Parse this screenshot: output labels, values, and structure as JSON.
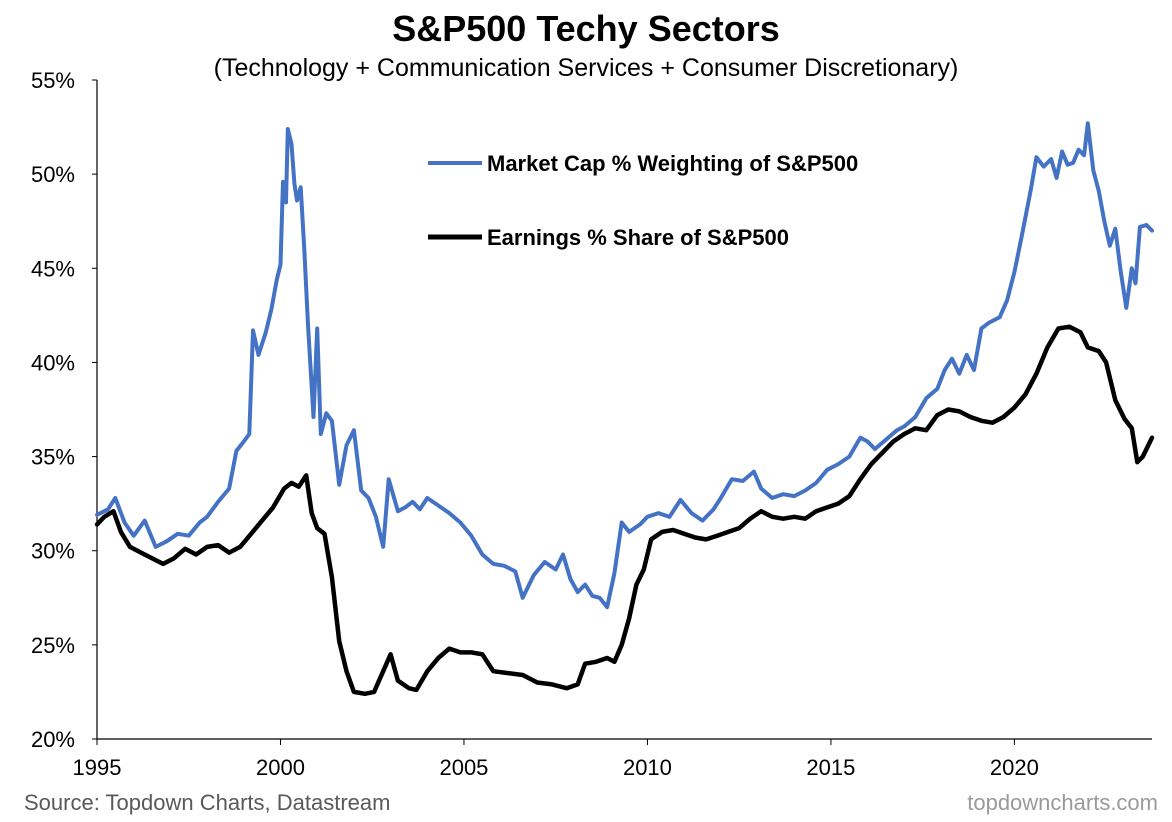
{
  "chart_data": {
    "type": "line",
    "title": "S&P500 Techy Sectors",
    "subtitle": "(Technology + Communication Services + Consumer Discretionary)",
    "xlabel": "",
    "ylabel": "",
    "xlim": [
      1995,
      2023.75
    ],
    "ylim": [
      20,
      55
    ],
    "x_ticks": [
      1995,
      2000,
      2005,
      2010,
      2015,
      2020
    ],
    "x_tick_labels": [
      "1995",
      "2000",
      "2005",
      "2010",
      "2015",
      "2020"
    ],
    "y_ticks": [
      20,
      25,
      30,
      35,
      40,
      45,
      50,
      55
    ],
    "y_tick_labels": [
      "20%",
      "25%",
      "30%",
      "35%",
      "40%",
      "45%",
      "50%",
      "55%"
    ],
    "grid": false,
    "legend_position": "top-center",
    "series": [
      {
        "name": "Market Cap % Weighting of S&P500",
        "color": "#4472C4",
        "points": [
          [
            1995.0,
            31.9
          ],
          [
            1995.3,
            32.2
          ],
          [
            1995.5,
            32.8
          ],
          [
            1995.75,
            31.5
          ],
          [
            1996.0,
            30.8
          ],
          [
            1996.3,
            31.6
          ],
          [
            1996.6,
            30.2
          ],
          [
            1996.9,
            30.5
          ],
          [
            1997.2,
            30.9
          ],
          [
            1997.5,
            30.8
          ],
          [
            1997.8,
            31.5
          ],
          [
            1998.0,
            31.8
          ],
          [
            1998.3,
            32.6
          ],
          [
            1998.6,
            33.3
          ],
          [
            1998.8,
            35.3
          ],
          [
            1999.0,
            35.8
          ],
          [
            1999.15,
            36.2
          ],
          [
            1999.25,
            41.7
          ],
          [
            1999.4,
            40.4
          ],
          [
            1999.6,
            41.6
          ],
          [
            1999.75,
            42.8
          ],
          [
            1999.9,
            44.4
          ],
          [
            2000.0,
            45.2
          ],
          [
            2000.07,
            49.6
          ],
          [
            2000.15,
            48.5
          ],
          [
            2000.2,
            52.4
          ],
          [
            2000.3,
            51.6
          ],
          [
            2000.38,
            49.5
          ],
          [
            2000.45,
            48.6
          ],
          [
            2000.55,
            49.3
          ],
          [
            2000.65,
            46.0
          ],
          [
            2000.75,
            42.0
          ],
          [
            2000.9,
            37.1
          ],
          [
            2001.0,
            41.8
          ],
          [
            2001.1,
            36.2
          ],
          [
            2001.25,
            37.3
          ],
          [
            2001.4,
            36.9
          ],
          [
            2001.6,
            33.5
          ],
          [
            2001.8,
            35.6
          ],
          [
            2002.0,
            36.4
          ],
          [
            2002.2,
            33.2
          ],
          [
            2002.4,
            32.8
          ],
          [
            2002.6,
            31.8
          ],
          [
            2002.8,
            30.2
          ],
          [
            2002.95,
            33.8
          ],
          [
            2003.2,
            32.1
          ],
          [
            2003.4,
            32.3
          ],
          [
            2003.6,
            32.6
          ],
          [
            2003.8,
            32.2
          ],
          [
            2004.0,
            32.8
          ],
          [
            2004.3,
            32.4
          ],
          [
            2004.6,
            32.0
          ],
          [
            2004.9,
            31.5
          ],
          [
            2005.2,
            30.8
          ],
          [
            2005.5,
            29.8
          ],
          [
            2005.8,
            29.3
          ],
          [
            2006.1,
            29.2
          ],
          [
            2006.4,
            28.9
          ],
          [
            2006.6,
            27.5
          ],
          [
            2006.9,
            28.7
          ],
          [
            2007.2,
            29.4
          ],
          [
            2007.5,
            29.0
          ],
          [
            2007.7,
            29.8
          ],
          [
            2007.9,
            28.5
          ],
          [
            2008.1,
            27.8
          ],
          [
            2008.3,
            28.2
          ],
          [
            2008.5,
            27.6
          ],
          [
            2008.7,
            27.5
          ],
          [
            2008.9,
            27.0
          ],
          [
            2009.1,
            28.8
          ],
          [
            2009.3,
            31.5
          ],
          [
            2009.5,
            31.0
          ],
          [
            2009.8,
            31.4
          ],
          [
            2010.0,
            31.8
          ],
          [
            2010.3,
            32.0
          ],
          [
            2010.6,
            31.8
          ],
          [
            2010.9,
            32.7
          ],
          [
            2011.2,
            32.0
          ],
          [
            2011.5,
            31.6
          ],
          [
            2011.8,
            32.2
          ],
          [
            2012.0,
            32.8
          ],
          [
            2012.3,
            33.8
          ],
          [
            2012.6,
            33.7
          ],
          [
            2012.9,
            34.2
          ],
          [
            2013.1,
            33.3
          ],
          [
            2013.4,
            32.8
          ],
          [
            2013.7,
            33.0
          ],
          [
            2014.0,
            32.9
          ],
          [
            2014.3,
            33.2
          ],
          [
            2014.6,
            33.6
          ],
          [
            2014.9,
            34.3
          ],
          [
            2015.2,
            34.6
          ],
          [
            2015.5,
            35.0
          ],
          [
            2015.8,
            36.0
          ],
          [
            2016.0,
            35.8
          ],
          [
            2016.2,
            35.4
          ],
          [
            2016.5,
            35.9
          ],
          [
            2016.8,
            36.4
          ],
          [
            2017.0,
            36.6
          ],
          [
            2017.3,
            37.1
          ],
          [
            2017.6,
            38.1
          ],
          [
            2017.9,
            38.6
          ],
          [
            2018.1,
            39.6
          ],
          [
            2018.3,
            40.2
          ],
          [
            2018.5,
            39.4
          ],
          [
            2018.7,
            40.4
          ],
          [
            2018.9,
            39.6
          ],
          [
            2019.1,
            41.8
          ],
          [
            2019.3,
            42.1
          ],
          [
            2019.6,
            42.4
          ],
          [
            2019.8,
            43.3
          ],
          [
            2020.0,
            44.8
          ],
          [
            2020.2,
            46.7
          ],
          [
            2020.45,
            49.2
          ],
          [
            2020.6,
            50.9
          ],
          [
            2020.8,
            50.4
          ],
          [
            2021.0,
            50.8
          ],
          [
            2021.15,
            49.8
          ],
          [
            2021.3,
            51.2
          ],
          [
            2021.45,
            50.5
          ],
          [
            2021.6,
            50.6
          ],
          [
            2021.75,
            51.3
          ],
          [
            2021.9,
            51.0
          ],
          [
            2022.0,
            52.7
          ],
          [
            2022.15,
            50.2
          ],
          [
            2022.3,
            49.1
          ],
          [
            2022.45,
            47.5
          ],
          [
            2022.6,
            46.2
          ],
          [
            2022.75,
            47.1
          ],
          [
            2022.9,
            44.8
          ],
          [
            2023.05,
            42.9
          ],
          [
            2023.2,
            45.0
          ],
          [
            2023.3,
            44.2
          ],
          [
            2023.42,
            47.2
          ],
          [
            2023.6,
            47.3
          ],
          [
            2023.75,
            47.0
          ]
        ]
      },
      {
        "name": "Earnings % Share of S&P500",
        "color": "#000000",
        "points": [
          [
            1995.0,
            31.4
          ],
          [
            1995.2,
            31.8
          ],
          [
            1995.45,
            32.1
          ],
          [
            1995.65,
            31.0
          ],
          [
            1995.9,
            30.2
          ],
          [
            1996.2,
            29.9
          ],
          [
            1996.5,
            29.6
          ],
          [
            1996.8,
            29.3
          ],
          [
            1997.1,
            29.6
          ],
          [
            1997.4,
            30.1
          ],
          [
            1997.7,
            29.8
          ],
          [
            1998.0,
            30.2
          ],
          [
            1998.3,
            30.3
          ],
          [
            1998.6,
            29.9
          ],
          [
            1998.9,
            30.2
          ],
          [
            1999.2,
            30.9
          ],
          [
            1999.5,
            31.6
          ],
          [
            1999.8,
            32.3
          ],
          [
            2000.1,
            33.3
          ],
          [
            2000.3,
            33.6
          ],
          [
            2000.5,
            33.4
          ],
          [
            2000.7,
            34.0
          ],
          [
            2000.85,
            32.0
          ],
          [
            2001.0,
            31.2
          ],
          [
            2001.2,
            30.9
          ],
          [
            2001.4,
            28.6
          ],
          [
            2001.6,
            25.2
          ],
          [
            2001.8,
            23.6
          ],
          [
            2002.0,
            22.5
          ],
          [
            2002.3,
            22.4
          ],
          [
            2002.55,
            22.5
          ],
          [
            2002.8,
            23.6
          ],
          [
            2003.0,
            24.5
          ],
          [
            2003.2,
            23.1
          ],
          [
            2003.5,
            22.7
          ],
          [
            2003.7,
            22.6
          ],
          [
            2004.0,
            23.6
          ],
          [
            2004.3,
            24.3
          ],
          [
            2004.6,
            24.8
          ],
          [
            2004.9,
            24.6
          ],
          [
            2005.2,
            24.6
          ],
          [
            2005.5,
            24.5
          ],
          [
            2005.8,
            23.6
          ],
          [
            2006.2,
            23.5
          ],
          [
            2006.6,
            23.4
          ],
          [
            2007.0,
            23.0
          ],
          [
            2007.4,
            22.9
          ],
          [
            2007.8,
            22.7
          ],
          [
            2008.1,
            22.9
          ],
          [
            2008.3,
            24.0
          ],
          [
            2008.6,
            24.1
          ],
          [
            2008.9,
            24.3
          ],
          [
            2009.1,
            24.1
          ],
          [
            2009.3,
            25.0
          ],
          [
            2009.5,
            26.4
          ],
          [
            2009.7,
            28.2
          ],
          [
            2009.9,
            29.0
          ],
          [
            2010.1,
            30.6
          ],
          [
            2010.4,
            31.0
          ],
          [
            2010.7,
            31.1
          ],
          [
            2011.0,
            30.9
          ],
          [
            2011.3,
            30.7
          ],
          [
            2011.6,
            30.6
          ],
          [
            2011.9,
            30.8
          ],
          [
            2012.2,
            31.0
          ],
          [
            2012.5,
            31.2
          ],
          [
            2012.8,
            31.7
          ],
          [
            2013.1,
            32.1
          ],
          [
            2013.4,
            31.8
          ],
          [
            2013.7,
            31.7
          ],
          [
            2014.0,
            31.8
          ],
          [
            2014.3,
            31.7
          ],
          [
            2014.6,
            32.1
          ],
          [
            2014.9,
            32.3
          ],
          [
            2015.2,
            32.5
          ],
          [
            2015.5,
            32.9
          ],
          [
            2015.8,
            33.8
          ],
          [
            2016.1,
            34.6
          ],
          [
            2016.4,
            35.2
          ],
          [
            2016.7,
            35.8
          ],
          [
            2017.0,
            36.2
          ],
          [
            2017.3,
            36.5
          ],
          [
            2017.6,
            36.4
          ],
          [
            2017.9,
            37.2
          ],
          [
            2018.2,
            37.5
          ],
          [
            2018.5,
            37.4
          ],
          [
            2018.8,
            37.1
          ],
          [
            2019.1,
            36.9
          ],
          [
            2019.4,
            36.8
          ],
          [
            2019.7,
            37.1
          ],
          [
            2020.0,
            37.6
          ],
          [
            2020.3,
            38.3
          ],
          [
            2020.6,
            39.4
          ],
          [
            2020.9,
            40.8
          ],
          [
            2021.2,
            41.8
          ],
          [
            2021.5,
            41.9
          ],
          [
            2021.8,
            41.6
          ],
          [
            2022.0,
            40.8
          ],
          [
            2022.3,
            40.6
          ],
          [
            2022.5,
            40.0
          ],
          [
            2022.75,
            38.0
          ],
          [
            2023.0,
            37.0
          ],
          [
            2023.2,
            36.5
          ],
          [
            2023.35,
            34.7
          ],
          [
            2023.5,
            35.0
          ],
          [
            2023.75,
            36.0
          ]
        ]
      }
    ]
  },
  "footer": {
    "source": "Source: Topdown Charts, Datastream",
    "watermark": "topdowncharts.com"
  }
}
